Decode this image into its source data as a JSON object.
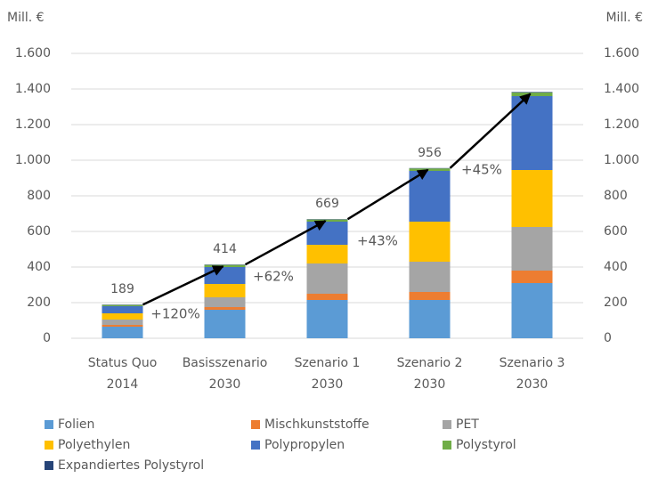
{
  "chart_data": {
    "type": "stacked_bar",
    "ylabel": "Mill. €",
    "y2label": "Mill. €",
    "categories": [
      [
        "Status Quo",
        "2014"
      ],
      [
        "Basisszenario",
        "2030"
      ],
      [
        "Szenario 1",
        "2030"
      ],
      [
        "Szenario 2",
        "2030"
      ],
      [
        "Szenario 3",
        "2030"
      ]
    ],
    "series": [
      {
        "name": "Folien",
        "color": "#5b9bd5",
        "values": [
          65,
          160,
          215,
          215,
          310
        ]
      },
      {
        "name": "Mischkunststoffe",
        "color": "#ed7d31",
        "values": [
          10,
          15,
          35,
          45,
          70
        ]
      },
      {
        "name": "PET",
        "color": "#a5a5a5",
        "values": [
          30,
          55,
          170,
          170,
          245
        ]
      },
      {
        "name": "Polyethylen",
        "color": "#ffc000",
        "values": [
          35,
          75,
          105,
          225,
          320
        ]
      },
      {
        "name": "Polypropylen",
        "color": "#4472c4",
        "values": [
          40,
          95,
          130,
          285,
          415
        ]
      },
      {
        "name": "Polystyrol",
        "color": "#70ad47",
        "values": [
          7,
          12,
          12,
          14,
          20
        ]
      },
      {
        "name": "Expandiertes Polystyrol",
        "color": "#264478",
        "values": [
          2,
          2,
          2,
          2,
          3
        ]
      }
    ],
    "totals": [
      189,
      414,
      669,
      956,
      null
    ],
    "annotations": [
      "+120%",
      "+62%",
      "+43%",
      "+45%"
    ],
    "ylim": [
      0,
      1600
    ],
    "yticks": [
      0,
      200,
      400,
      600,
      800,
      {
        "value": 1000,
        "label": "1.000"
      },
      {
        "value": 1200,
        "label": "1.200"
      },
      {
        "value": 1400,
        "label": "1.400"
      },
      {
        "value": 1600,
        "label": "1.600"
      }
    ],
    "y2lim": [
      0,
      1600
    ],
    "y2ticks": [
      0,
      200,
      400,
      600,
      800,
      {
        "value": 1000,
        "label": "1.000"
      },
      {
        "value": 1200,
        "label": "1.200"
      },
      {
        "value": 1400,
        "label": "1.400"
      },
      {
        "value": 1600,
        "label": "1.600"
      }
    ],
    "grid": true
  }
}
